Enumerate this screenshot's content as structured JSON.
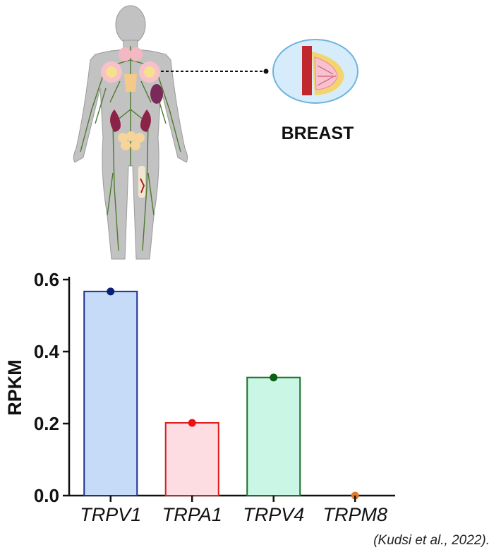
{
  "illustration": {
    "organ_label": "BREAST",
    "body_icon": "human-body-lymphatic-icon",
    "organ_icon": "breast-anatomy-icon"
  },
  "citation": "(Kudsi et al., 2022).",
  "chart_data": {
    "type": "bar",
    "categories": [
      "TRPV1",
      "TRPA1",
      "TRPV4",
      "TRPM8"
    ],
    "values": [
      0.567,
      0.202,
      0.328,
      0.0
    ],
    "xlabel": "",
    "ylabel": "RPKM",
    "ylim": [
      0,
      0.6
    ],
    "yticks": [
      "0.0",
      "0.2",
      "0.4",
      "0.6"
    ],
    "grid": false,
    "colors": {
      "fills": [
        "#c6dbf7",
        "#fddde2",
        "#c9f6e5",
        "#ffffff"
      ],
      "strokes": [
        "#1f2f8f",
        "#e0191c",
        "#1a6f2a",
        "#e07a2c"
      ],
      "dots": [
        "#0d1d7a",
        "#ee1111",
        "#0c6014",
        "#e07a2c"
      ]
    }
  }
}
